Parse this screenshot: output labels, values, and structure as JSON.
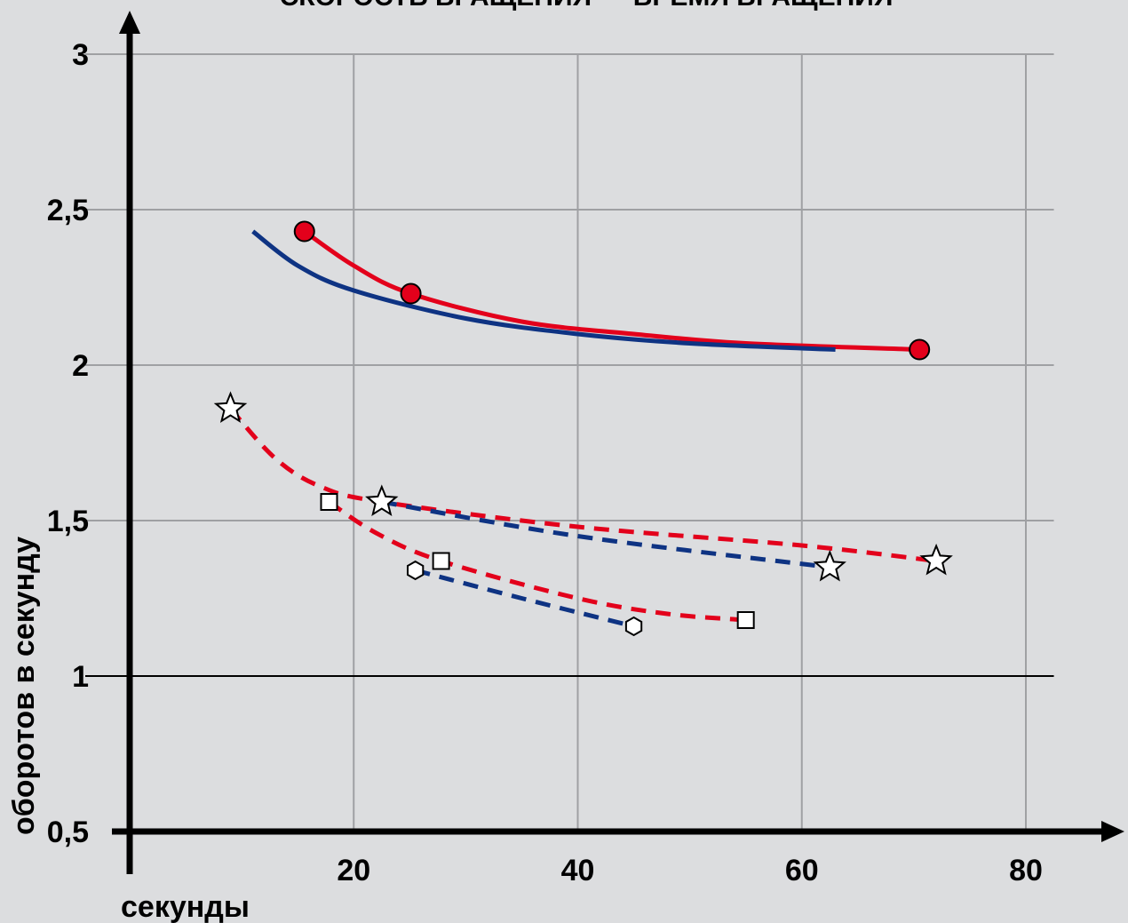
{
  "chart_data": {
    "type": "line",
    "title": "СКОРОСТЬ ВРАЩЕНИЯ — ВРЕМЯ ВРАЩЕНИЯ",
    "xlabel": "секунды",
    "ylabel": "оборотов в секунду",
    "xlim": [
      0,
      82
    ],
    "ylim": [
      0.5,
      3
    ],
    "x_ticks": [
      20,
      40,
      60,
      80
    ],
    "x_tick_labels": [
      "20",
      "40",
      "60",
      "80"
    ],
    "y_ticks": [
      0.5,
      1,
      1.5,
      2,
      2.5,
      3
    ],
    "y_tick_labels": [
      "0,5",
      "1",
      "1,5",
      "2",
      "2,5",
      "3"
    ],
    "grid": true,
    "series": [
      {
        "color": "#e3001b",
        "style": "solid",
        "marker": "circle",
        "curve": [
          [
            15.6,
            2.43
          ],
          [
            20,
            2.32
          ],
          [
            25.1,
            2.23
          ],
          [
            35,
            2.14
          ],
          [
            45,
            2.1
          ],
          [
            55,
            2.07
          ],
          [
            70.5,
            2.05
          ]
        ],
        "points": [
          [
            15.6,
            2.43
          ],
          [
            25.1,
            2.23
          ],
          [
            70.5,
            2.05
          ]
        ]
      },
      {
        "color": "#0e3383",
        "style": "solid",
        "marker": "none",
        "curve": [
          [
            11,
            2.43
          ],
          [
            15,
            2.32
          ],
          [
            20,
            2.24
          ],
          [
            30,
            2.15
          ],
          [
            40,
            2.1
          ],
          [
            50,
            2.07
          ],
          [
            63,
            2.05
          ]
        ],
        "points": []
      },
      {
        "color": "#e3001b",
        "style": "dashed",
        "marker": "star",
        "curve": [
          [
            9,
            1.86
          ],
          [
            13,
            1.7
          ],
          [
            17,
            1.61
          ],
          [
            22.5,
            1.56
          ],
          [
            40,
            1.48
          ],
          [
            60,
            1.42
          ],
          [
            72,
            1.37
          ]
        ],
        "points": [
          [
            9,
            1.86
          ],
          [
            22.5,
            1.56
          ],
          [
            72,
            1.37
          ]
        ]
      },
      {
        "color": "#0e3383",
        "style": "dashed",
        "marker": "star",
        "curve": [
          [
            22.5,
            1.56
          ],
          [
            40,
            1.45
          ],
          [
            62.5,
            1.35
          ]
        ],
        "points": [
          [
            62.5,
            1.35
          ]
        ]
      },
      {
        "color": "#e3001b",
        "style": "dashed",
        "marker": "square",
        "curve": [
          [
            17.8,
            1.56
          ],
          [
            22,
            1.46
          ],
          [
            27.8,
            1.37
          ],
          [
            40,
            1.25
          ],
          [
            48,
            1.2
          ],
          [
            55,
            1.18
          ]
        ],
        "points": [
          [
            17.8,
            1.56
          ],
          [
            27.8,
            1.37
          ],
          [
            55,
            1.18
          ]
        ]
      },
      {
        "color": "#0e3383",
        "style": "dashed",
        "marker": "hexagon",
        "curve": [
          [
            25.5,
            1.34
          ],
          [
            35,
            1.25
          ],
          [
            45,
            1.16
          ]
        ],
        "points": [
          [
            25.5,
            1.34
          ],
          [
            45,
            1.16
          ]
        ]
      }
    ]
  }
}
